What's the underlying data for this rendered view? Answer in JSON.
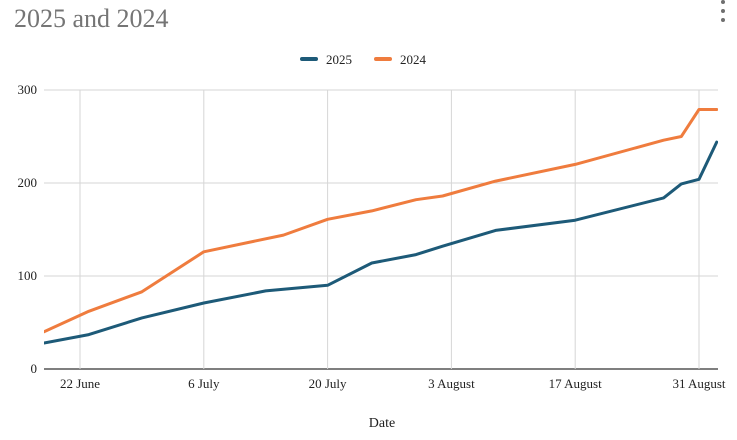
{
  "title": "2025 and 2024",
  "menu_icon": "more-vert-icon",
  "chart_data": {
    "type": "line",
    "title": "2025 and 2024",
    "xlabel": "Date",
    "ylabel": "",
    "x_type": "date",
    "xlim": [
      "2025-06-16",
      "2025-08-31"
    ],
    "ylim": [
      0,
      300
    ],
    "y_ticks": [
      0,
      100,
      200,
      300
    ],
    "y_tick_labels": [
      "0",
      "100",
      "200",
      "300"
    ],
    "x_ticks": [
      "2025-06-22",
      "2025-07-06",
      "2025-07-20",
      "2025-08-03",
      "2025-08-17",
      "2025-08-31"
    ],
    "x_tick_labels": [
      "22 June",
      "6 July",
      "20 July",
      "3 August",
      "17 August",
      "31 August"
    ],
    "grid": true,
    "legend_position": "top",
    "series": [
      {
        "name": "2025",
        "color": "#1d5a78",
        "points": [
          {
            "x": "2025-06-16",
            "y": 28
          },
          {
            "x": "2025-06-23",
            "y": 37
          },
          {
            "x": "2025-06-29",
            "y": 55
          },
          {
            "x": "2025-07-06",
            "y": 71
          },
          {
            "x": "2025-07-13",
            "y": 84
          },
          {
            "x": "2025-07-20",
            "y": 90
          },
          {
            "x": "2025-07-25",
            "y": 114
          },
          {
            "x": "2025-07-30",
            "y": 123
          },
          {
            "x": "2025-08-02",
            "y": 132
          },
          {
            "x": "2025-08-08",
            "y": 149
          },
          {
            "x": "2025-08-17",
            "y": 160
          },
          {
            "x": "2025-08-27",
            "y": 184
          },
          {
            "x": "2025-08-29",
            "y": 199
          },
          {
            "x": "2025-08-31",
            "y": 204
          },
          {
            "x": "2025-08-33",
            "y": 244
          }
        ]
      },
      {
        "name": "2024",
        "color": "#ef7c3e",
        "points": [
          {
            "x": "2025-06-16",
            "y": 40
          },
          {
            "x": "2025-06-23",
            "y": 62
          },
          {
            "x": "2025-06-29",
            "y": 83
          },
          {
            "x": "2025-07-06",
            "y": 126
          },
          {
            "x": "2025-07-15",
            "y": 144
          },
          {
            "x": "2025-07-20",
            "y": 161
          },
          {
            "x": "2025-07-25",
            "y": 170
          },
          {
            "x": "2025-07-30",
            "y": 182
          },
          {
            "x": "2025-08-02",
            "y": 186
          },
          {
            "x": "2025-08-08",
            "y": 202
          },
          {
            "x": "2025-08-17",
            "y": 220
          },
          {
            "x": "2025-08-27",
            "y": 246
          },
          {
            "x": "2025-08-29",
            "y": 250
          },
          {
            "x": "2025-08-31",
            "y": 279
          },
          {
            "x": "2025-08-33",
            "y": 279
          }
        ]
      }
    ]
  }
}
